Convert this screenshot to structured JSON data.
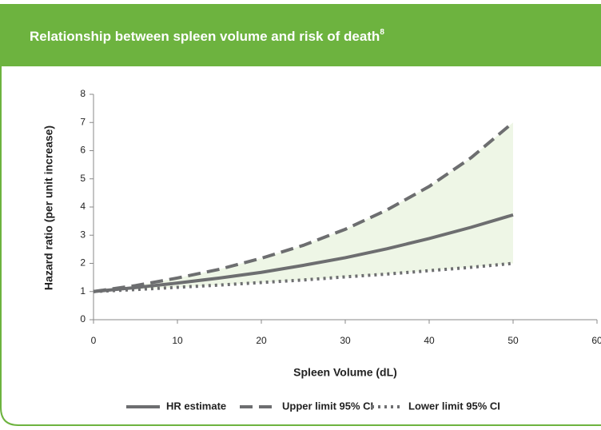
{
  "chart_data": {
    "type": "line",
    "title": "Relationship between spleen volume and risk of death",
    "title_superscript": "8",
    "x_label": "Spleen Volume (dL)",
    "y_label": "Hazard ratio (per unit increase)",
    "x": [
      0,
      5,
      10,
      15,
      20,
      25,
      30,
      35,
      40,
      45,
      50
    ],
    "series": [
      {
        "name": "HR estimate",
        "color": "#6d6e70",
        "dash": "solid",
        "values": [
          1,
          1.14,
          1.3,
          1.48,
          1.68,
          1.93,
          2.2,
          2.52,
          2.88,
          3.28,
          3.72
        ]
      },
      {
        "name": "Upper limit 95% CI",
        "color": "#6d6e70",
        "dash": "dashed",
        "values": [
          1,
          1.21,
          1.48,
          1.79,
          2.18,
          2.64,
          3.21,
          3.9,
          4.73,
          5.75,
          7.0
        ]
      },
      {
        "name": "Lower limit 95% CI",
        "color": "#6d6e70",
        "dash": "dotted",
        "values": [
          1,
          1.07,
          1.15,
          1.23,
          1.32,
          1.41,
          1.52,
          1.62,
          1.74,
          1.86,
          2.0
        ]
      }
    ],
    "band_color": "#eef6e6",
    "xlim": [
      0,
      60
    ],
    "xticks": [
      0,
      10,
      20,
      30,
      40,
      50,
      60
    ],
    "ylim": [
      0,
      8
    ],
    "yticks": [
      0,
      1,
      2,
      3,
      4,
      5,
      6,
      7,
      8
    ],
    "header_color": "#6db33f"
  }
}
